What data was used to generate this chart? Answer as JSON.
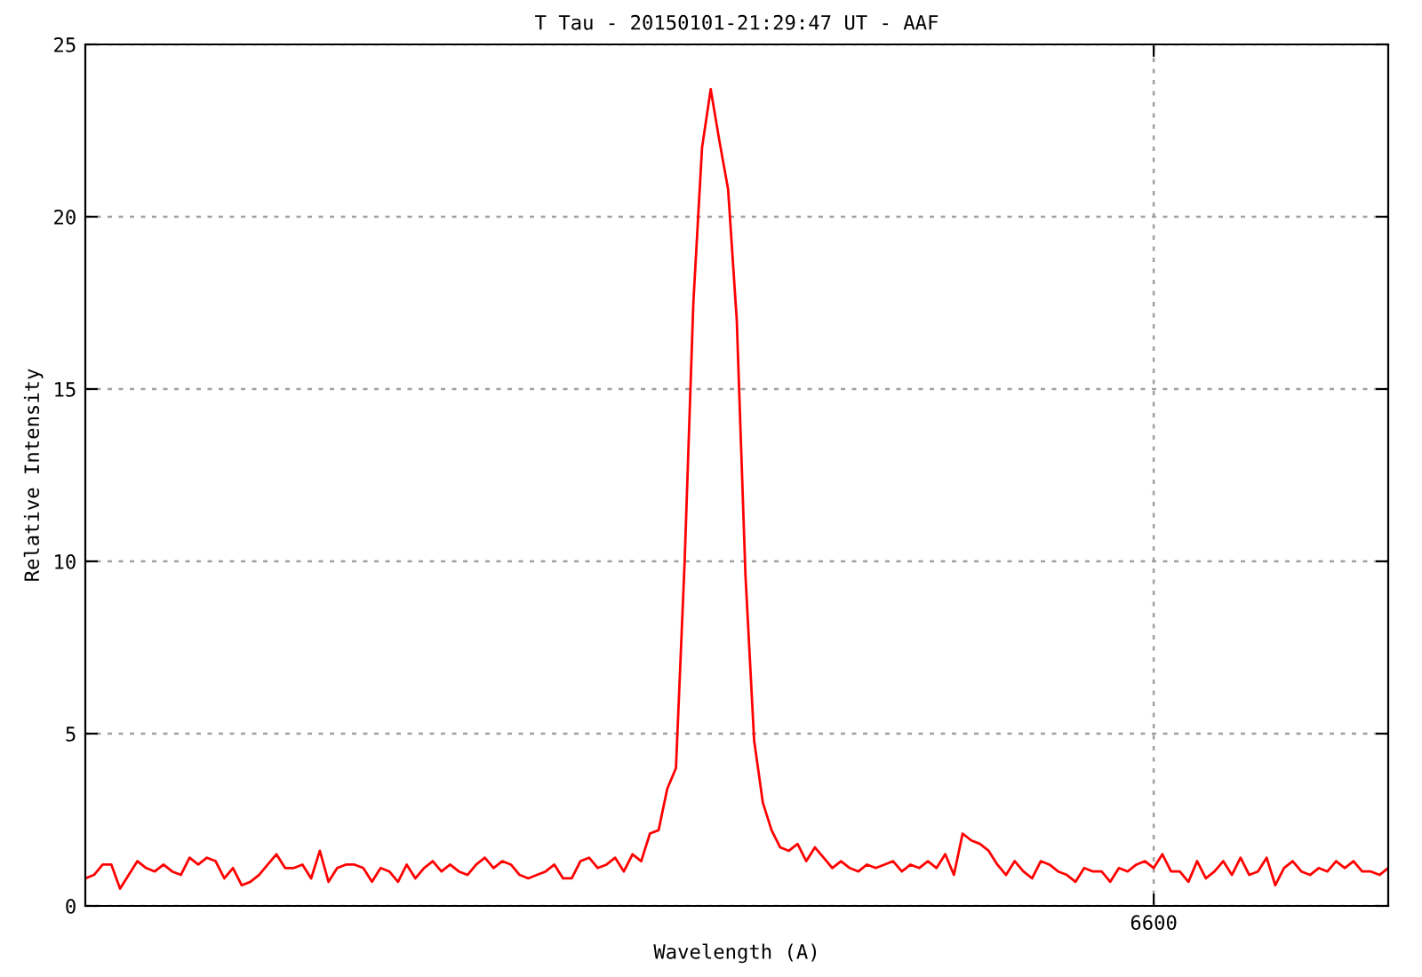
{
  "chart_data": {
    "type": "line",
    "title": "T Tau - 20150101-21:29:47 UT - AAF",
    "xlabel": "Wavelength (A)",
    "ylabel": "Relative Intensity",
    "categories": [
      null,
      null,
      null,
      null,
      null,
      null,
      null,
      null,
      null,
      null,
      null,
      null,
      null,
      null,
      null,
      null,
      null,
      null,
      null,
      null,
      null,
      null,
      null,
      null,
      null,
      null,
      null,
      null,
      null,
      null,
      null,
      null,
      null,
      null,
      null,
      null,
      null,
      null,
      null,
      null,
      null,
      null,
      null,
      null,
      null,
      null,
      null,
      null,
      null,
      null,
      null,
      null,
      null,
      null,
      null,
      null,
      null,
      null,
      null,
      null,
      null,
      null,
      null,
      null,
      null,
      null,
      null,
      null,
      null,
      null,
      null,
      null,
      null,
      null,
      null,
      null,
      null,
      null,
      null,
      null,
      null,
      null,
      null,
      null,
      null,
      null,
      null,
      null,
      null,
      null,
      null,
      null,
      null,
      null,
      null,
      null,
      null,
      null,
      null,
      null,
      null,
      null,
      null,
      null,
      null,
      null,
      null,
      null,
      null,
      null,
      null,
      null,
      null,
      null,
      null,
      null,
      null,
      null,
      null,
      null,
      null,
      null,
      null,
      "6600",
      null,
      null,
      null,
      null,
      null,
      null,
      null,
      null,
      null,
      null,
      null,
      null,
      null,
      null,
      null,
      null,
      null,
      null,
      null,
      null,
      null,
      null,
      null,
      null,
      null,
      null,
      null
    ],
    "series": [
      {
        "color": "#ff0000",
        "values": [
          0.8,
          0.9,
          1.2,
          1.2,
          0.5,
          0.9,
          1.3,
          1.1,
          1.0,
          1.2,
          1.0,
          0.9,
          1.4,
          1.2,
          1.4,
          1.3,
          0.8,
          1.1,
          0.6,
          0.7,
          0.9,
          1.2,
          1.5,
          1.1,
          1.1,
          1.2,
          0.8,
          1.6,
          0.7,
          1.1,
          1.2,
          1.2,
          1.1,
          0.7,
          1.1,
          1.0,
          0.7,
          1.2,
          0.8,
          1.1,
          1.3,
          1.0,
          1.2,
          1.0,
          0.9,
          1.2,
          1.4,
          1.1,
          1.3,
          1.2,
          0.9,
          0.8,
          0.9,
          1.0,
          1.2,
          0.8,
          0.8,
          1.3,
          1.4,
          1.1,
          1.2,
          1.4,
          1.0,
          1.5,
          1.3,
          2.1,
          2.2,
          3.4,
          4.0,
          10.0,
          17.5,
          22.0,
          23.7,
          22.2,
          20.8,
          17.0,
          9.6,
          4.8,
          3.0,
          2.2,
          1.7,
          1.6,
          1.8,
          1.3,
          1.7,
          1.4,
          1.1,
          1.3,
          1.1,
          1.0,
          1.2,
          1.1,
          1.2,
          1.3,
          1.0,
          1.2,
          1.1,
          1.3,
          1.1,
          1.5,
          0.9,
          2.1,
          1.9,
          1.8,
          1.6,
          1.2,
          0.9,
          1.3,
          1.0,
          0.8,
          1.3,
          1.2,
          1.0,
          0.9,
          0.7,
          1.1,
          1.0,
          1.0,
          0.7,
          1.1,
          1.0,
          1.2,
          1.3,
          1.1,
          1.5,
          1.0,
          1.0,
          0.7,
          1.3,
          0.8,
          1.0,
          1.3,
          0.9,
          1.4,
          0.9,
          1.0,
          1.4,
          0.6,
          1.1,
          1.3,
          1.0,
          0.9,
          1.1,
          1.0,
          1.3,
          1.1,
          1.3,
          1.0,
          1.0,
          0.9,
          1.1
        ]
      }
    ],
    "ylim": [
      0,
      25
    ],
    "yticks": [
      0,
      5,
      10,
      15,
      20,
      25
    ],
    "grid": true,
    "legend": false,
    "marker": "none",
    "line_style": "solid"
  }
}
